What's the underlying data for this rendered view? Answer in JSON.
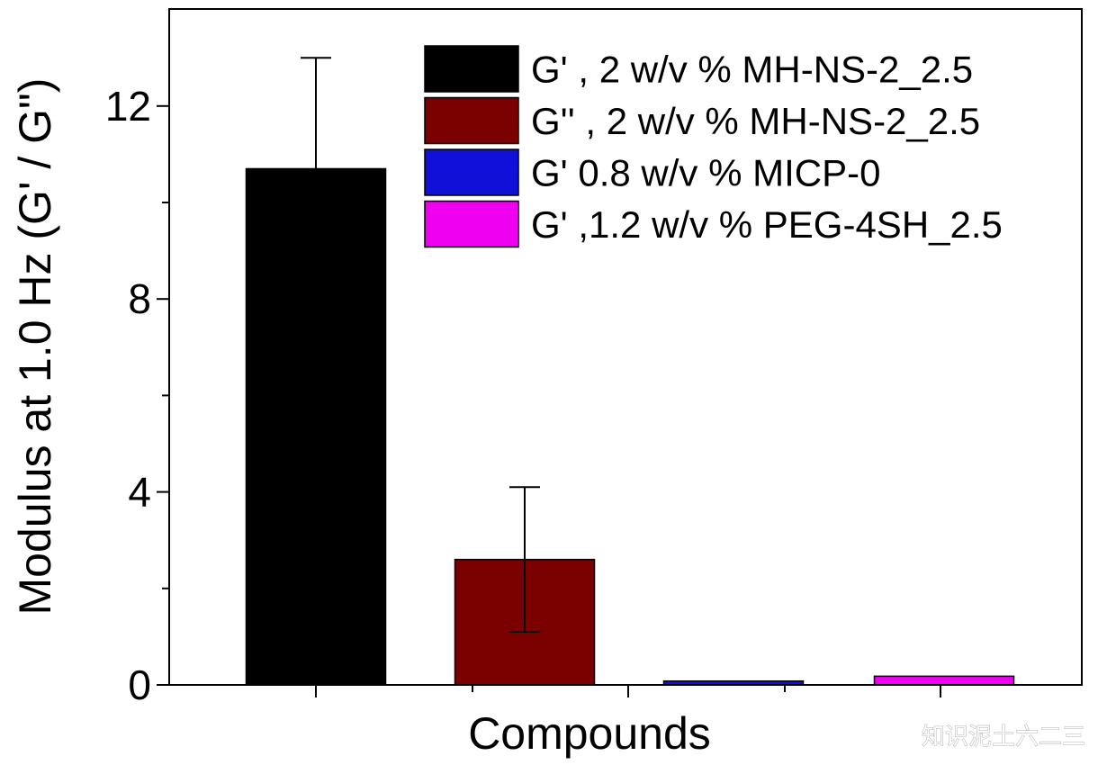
{
  "chart_data": {
    "type": "bar",
    "title": "",
    "xlabel": "Compounds",
    "ylabel": "Modulus at 1.0 Hz (G' / G\")",
    "ylim": [
      0,
      14
    ],
    "yticks": [
      0,
      4,
      8,
      12
    ],
    "grid": false,
    "legend_position": "top-right",
    "series": [
      {
        "name": "G' , 2 w/v % MH-NS-2_2.5",
        "value": 10.7,
        "error": 2.3,
        "color": "#000000"
      },
      {
        "name": "G'' , 2 w/v % MH-NS-2_2.5",
        "value": 2.6,
        "error": 1.5,
        "color": "#7b0000"
      },
      {
        "name": "G' 0.8 w/v % MICP-0",
        "value": 0.08,
        "error": 0,
        "color": "#1010d8"
      },
      {
        "name": "G' ,1.2 w/v % PEG-4SH_2.5",
        "value": 0.18,
        "error": 0,
        "color": "#f000f0"
      }
    ]
  },
  "watermark": "知识泥土六二三"
}
